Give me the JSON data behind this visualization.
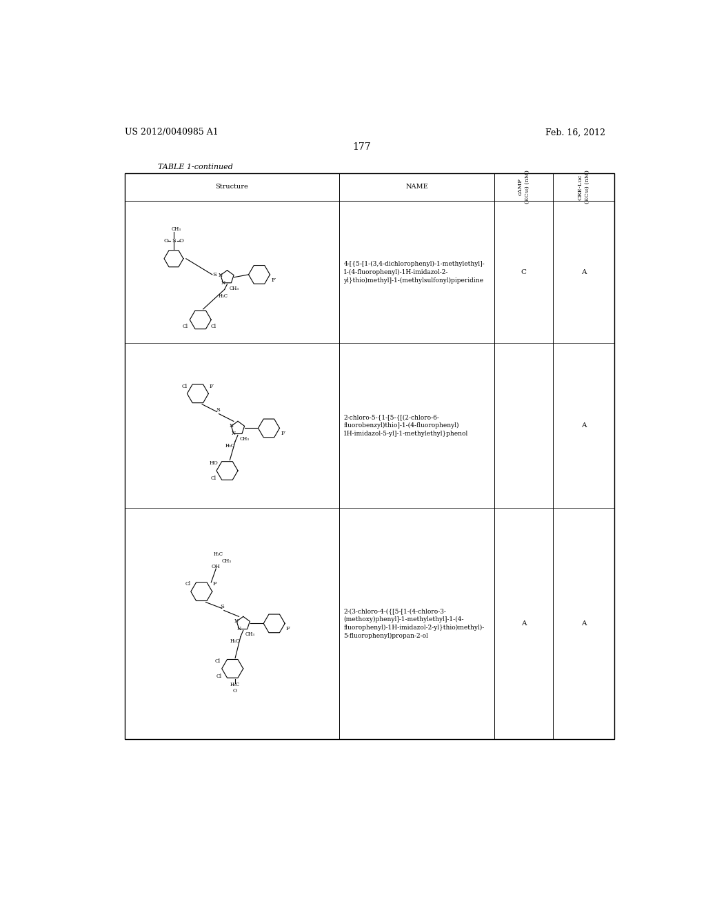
{
  "page_number": "177",
  "patent_number": "US 2012/0040985 A1",
  "patent_date": "Feb. 16, 2012",
  "table_title": "TABLE 1-continued",
  "col_headers": {
    "structure": "Structure",
    "name": "NAME",
    "camp": "cAMP\n(EC50) (nM)",
    "cre_luc": "CRE-Luc\n(EC50) (nM)"
  },
  "rows": [
    {
      "camp": "C",
      "cre_luc": "A",
      "name": "4-[{5-[1-(3,4-dichlorophenyl)-1-methylethyl]-\n1-(4-fluorophenyl)-1H-imidazol-2-\nyl}thio)methyl]-1-(methylsulfonyl)piperidine"
    },
    {
      "camp": "",
      "cre_luc": "A",
      "name": "2-chloro-5-{1-[5-{[(2-chloro-6-\nfluorobenzyl)thio]-1-(4-fluorophenyl)\n1H-imidazol-5-yl]-1-methylethyl}phenol"
    },
    {
      "camp": "A",
      "cre_luc": "A",
      "name": "2-(3-chloro-4-({[5-[1-(4-chloro-3-\n(methoxy)phenyl]-1-methylethyl]-1-(4-\nfluorophenyl)-1H-imidazol-2-yl}thio)methyl)-\n5-fluorophenyl)propan-2-ol"
    }
  ],
  "background_color": "#ffffff",
  "text_color": "#000000"
}
